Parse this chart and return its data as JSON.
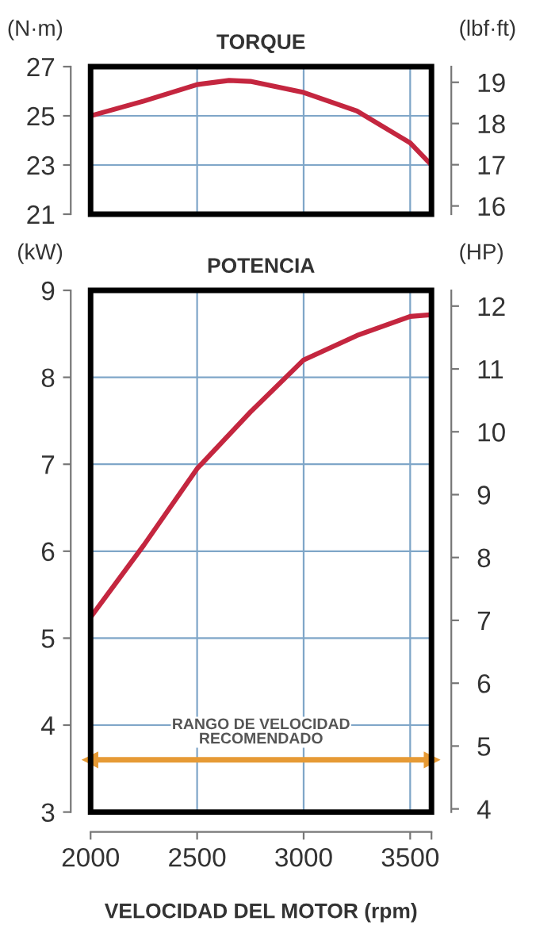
{
  "chart_data": [
    {
      "type": "line",
      "title": "TORQUE",
      "ylabel": "(N·m)",
      "y2label": "(lbf·ft)",
      "x": [
        2000,
        2250,
        2500,
        2650,
        2750,
        3000,
        3250,
        3500,
        3600
      ],
      "series": [
        {
          "color": "#c4263f",
          "values": [
            25.0,
            25.6,
            26.27,
            26.44,
            26.4,
            25.95,
            25.2,
            23.9,
            23.0
          ]
        }
      ],
      "xlim": [
        2000,
        3600
      ],
      "xticks": [
        {
          "value": 2500,
          "label": null
        },
        {
          "value": 3000,
          "label": null
        },
        {
          "value": 3500,
          "label": null
        }
      ],
      "ylim": [
        21,
        27
      ],
      "yticks": [
        21,
        23,
        25,
        27
      ],
      "y2lim": [
        15.8,
        19.38
      ],
      "y2ticks": [
        16,
        17,
        18,
        19
      ],
      "grid": true,
      "tick_labels": "y",
      "line_style": "solid",
      "marker": "none",
      "legend": false
    },
    {
      "type": "line",
      "title": "POTENCIA",
      "ylabel": "(kW)",
      "y2label": "(HP)",
      "xlabel": "VELOCIDAD DEL MOTOR (rpm)",
      "x": [
        2000,
        2250,
        2500,
        2750,
        3000,
        3250,
        3500,
        3600
      ],
      "series": [
        {
          "color": "#c4263f",
          "values": [
            5.24,
            6.07,
            6.95,
            7.6,
            8.2,
            8.48,
            8.7,
            8.72
          ]
        }
      ],
      "xlim": [
        2000,
        3600
      ],
      "xticks": [
        2000,
        2500,
        3000,
        3500,
        {
          "value": 3600,
          "label": null
        }
      ],
      "ylim": [
        3,
        9
      ],
      "yticks": [
        3,
        4,
        5,
        6,
        7,
        8,
        9
      ],
      "y2lim": [
        3.95,
        12.25
      ],
      "y2ticks": [
        4,
        5,
        6,
        7,
        8,
        9,
        10,
        11,
        12
      ],
      "ref_lines": [
        {
          "axis": "y",
          "value": 3.6,
          "label": "RANGO DE VELOCIDAD\nRECOMENDADO",
          "color": "#e69a35"
        }
      ],
      "grid": true,
      "line_style": "solid",
      "marker": "none",
      "legend": false
    }
  ]
}
